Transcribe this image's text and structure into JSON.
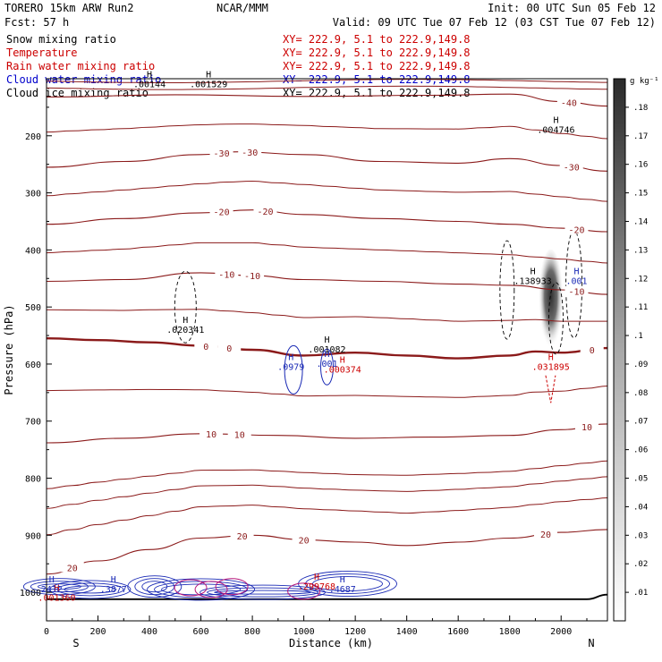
{
  "header": {
    "model": "TORERO  15km ARW  Run2",
    "org": "NCAR/MMM",
    "init": "Init: 00 UTC Sun 05 Feb 12",
    "fcst": "Fcst:   57 h",
    "valid": "Valid: 09 UTC Tue 07 Feb 12 (03 CST Tue 07 Feb 12)"
  },
  "fields": [
    {
      "name": "Snow mixing ratio",
      "xy": "XY= 222.9,  5.1 to 222.9,149.8",
      "color": "#000000",
      "xy_color": "#cc0000"
    },
    {
      "name": "Temperature",
      "xy": "XY= 222.9,  5.1 to 222.9,149.8",
      "color": "#cc0000",
      "xy_color": "#cc0000"
    },
    {
      "name": "Rain water mixing ratio",
      "xy": "XY= 222.9,  5.1 to 222.9,149.8",
      "color": "#cc0000",
      "xy_color": "#cc0000"
    },
    {
      "name": "Cloud water mixing ratio",
      "xy": "XY= 222.9,  5.1 to 222.9,149.8",
      "color": "#0000cc",
      "xy_color": "#0000cc"
    },
    {
      "name": "Cloud ice mixing ratio",
      "xy": "XY= 222.9,  5.1 to 222.9,149.8",
      "color": "#000000",
      "xy_color": "#000000"
    }
  ],
  "colorbar": {
    "unit": "g kg⁻¹",
    "ticks": [
      ".01",
      ".02",
      ".03",
      ".04",
      ".05",
      ".06",
      ".07",
      ".08",
      ".09",
      ".1",
      ".11",
      ".12",
      ".13",
      ".14",
      ".15",
      ".16",
      ".17",
      ".18"
    ]
  },
  "chart_data": {
    "type": "heatmap",
    "xlabel": "Distance (km)",
    "ylabel": "Pressure (hPa)",
    "x_ticks": [
      0,
      200,
      400,
      600,
      800,
      1000,
      1200,
      1400,
      1600,
      1800,
      2000
    ],
    "y_ticks": [
      200,
      300,
      400,
      500,
      600,
      700,
      800,
      900,
      1000
    ],
    "xlim": [
      0,
      2180
    ],
    "ylim": [
      1050,
      100
    ],
    "endpoints": {
      "left": "S",
      "right": "N"
    },
    "temperature_labels": [
      "-40",
      "-30",
      "-30",
      "-30",
      "-20",
      "-20",
      "-20",
      "-10",
      "-10",
      "-10",
      "0",
      "0",
      "0",
      "10",
      "10",
      "10",
      "20",
      "20",
      "20",
      "20"
    ],
    "temperature_isotherms": [
      {
        "level": -40,
        "x": [
          0,
          500,
          1000,
          1500,
          1800,
          2000,
          2180
        ],
        "p": [
          132,
          128,
          131,
          129,
          127,
          140,
          148
        ]
      },
      {
        "level": -30,
        "x": [
          0,
          300,
          600,
          750,
          1000,
          1300,
          1600,
          1800,
          2000,
          2180
        ],
        "p": [
          255,
          245,
          233,
          228,
          233,
          245,
          248,
          240,
          252,
          262
        ]
      },
      {
        "level": -20,
        "x": [
          0,
          300,
          600,
          800,
          1000,
          1300,
          1600,
          1800,
          2000,
          2180
        ],
        "p": [
          355,
          345,
          335,
          330,
          338,
          345,
          350,
          355,
          362,
          368
        ]
      },
      {
        "level": -10,
        "x": [
          0,
          300,
          600,
          800,
          1000,
          1300,
          1600,
          1800,
          2000,
          2180
        ],
        "p": [
          455,
          452,
          440,
          445,
          452,
          455,
          460,
          462,
          470,
          478
        ]
      },
      {
        "level": 0,
        "x": [
          0,
          200,
          400,
          600,
          800,
          1000,
          1200,
          1400,
          1600,
          1800,
          1900,
          2000,
          2180
        ],
        "p": [
          555,
          558,
          562,
          568,
          575,
          585,
          580,
          585,
          590,
          585,
          578,
          580,
          572
        ]
      },
      {
        "level": 10,
        "x": [
          0,
          300,
          600,
          900,
          1200,
          1500,
          1800,
          2000,
          2180
        ],
        "p": [
          738,
          730,
          722,
          725,
          730,
          728,
          725,
          715,
          705
        ]
      },
      {
        "level": 20,
        "x": [
          0,
          200,
          400,
          600,
          800,
          1000,
          1200,
          1400,
          1600,
          1800,
          2000,
          2180
        ],
        "p": [
          968,
          945,
          925,
          905,
          900,
          908,
          912,
          918,
          912,
          905,
          895,
          890
        ]
      }
    ],
    "extrema_labels": [
      {
        "kind": "H",
        "value": ".004746",
        "x": 1980,
        "p": 195
      },
      {
        "kind": "H",
        "value": ".138933",
        "x": 1890,
        "p": 460
      },
      {
        "kind": "H",
        "value": ".001",
        "x": 2060,
        "p": 460
      },
      {
        "kind": "H",
        "value": ".020341",
        "x": 540,
        "p": 545
      },
      {
        "kind": "H",
        "value": ".001082",
        "x": 1090,
        "p": 580
      },
      {
        "kind": "H",
        "value": ".0979",
        "x": 950,
        "p": 610
      },
      {
        "kind": "H",
        "value": ".001",
        "x": 1090,
        "p": 605
      },
      {
        "kind": "H",
        "value": ".000374",
        "x": 1150,
        "p": 615
      },
      {
        "kind": "H",
        "value": ".031895",
        "x": 1960,
        "p": 610
      },
      {
        "kind": "H",
        "value": ".001529",
        "x": 630,
        "p": 115
      },
      {
        "kind": "H",
        "value": ".00144",
        "x": 400,
        "p": 115
      },
      {
        "kind": "H",
        "value": ".3877",
        "x": 260,
        "p": 1000
      },
      {
        "kind": "H",
        "value": ".4687",
        "x": 1150,
        "p": 1000
      },
      {
        "kind": "H",
        "value": ".299768",
        "x": 1050,
        "p": 995
      },
      {
        "kind": "H",
        "value": ".001360",
        "x": 40,
        "p": 1015
      },
      {
        "kind": "H",
        "value": "2412",
        "x": 20,
        "p": 1000
      }
    ]
  }
}
